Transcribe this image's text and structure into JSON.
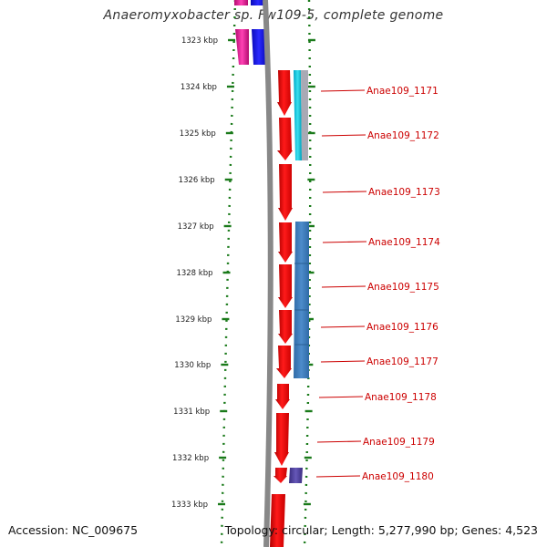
{
  "title": "Anaeromyxobacter sp. Fw109-5, complete genome",
  "ruler_labels": [
    "1323 kbp",
    "1324 kbp",
    "1325 kbp",
    "1326 kbp",
    "1327 kbp",
    "1328 kbp",
    "1329 kbp",
    "1330 kbp",
    "1331 kbp",
    "1332 kbp",
    "1333 kbp"
  ],
  "genes": [
    {
      "label": "Anae109_1171"
    },
    {
      "label": "Anae109_1172"
    },
    {
      "label": "Anae109_1173"
    },
    {
      "label": "Anae109_1174"
    },
    {
      "label": "Anae109_1175"
    },
    {
      "label": "Anae109_1176"
    },
    {
      "label": "Anae109_1177"
    },
    {
      "label": "Anae109_1178"
    },
    {
      "label": "Anae109_1179"
    },
    {
      "label": "Anae109_1180"
    }
  ],
  "footer": {
    "accession": "Accession: NC_009675",
    "topology": "Topology: circular; Length: 5,277,990 bp; Genes: 4,523"
  },
  "colors": {
    "gene": "#ee0000",
    "label": "#cc0000",
    "leader": "#cc0000",
    "backbone": "#888888",
    "ruler_tick": "#1a7a1a",
    "ruler_text": "#222222",
    "feature_steelblue": "#3a78b8",
    "feature_cyan": "#22c6d8",
    "feature_magenta": "#e0188a",
    "feature_blue": "#1414ee",
    "feature_purple": "#4b3c96"
  }
}
